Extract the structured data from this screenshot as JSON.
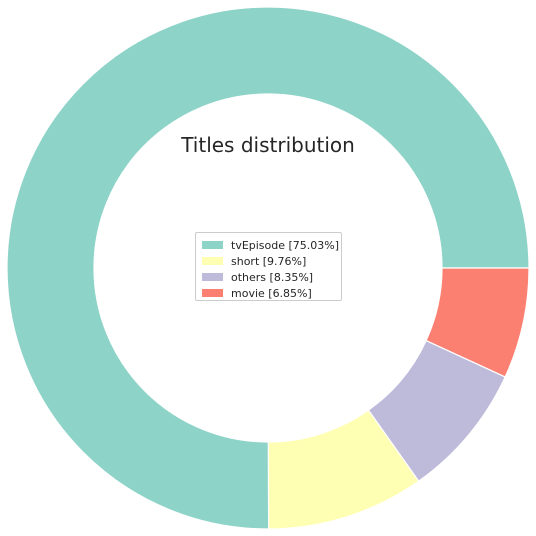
{
  "chart_data": {
    "type": "pie",
    "title": "Titles distribution",
    "donut": true,
    "legend_position": "center",
    "slices": [
      {
        "label": "tvEpisode",
        "legend_label": "tvEpisode [75.03%]",
        "value": 75.03,
        "color": "#8dd3c7"
      },
      {
        "label": "short",
        "legend_label": "short [9.76%]",
        "value": 9.76,
        "color": "#ffffb3"
      },
      {
        "label": "others",
        "legend_label": "others [8.35%]",
        "value": 8.35,
        "color": "#bebada"
      },
      {
        "label": "movie",
        "legend_label": "movie [6.85%]",
        "value": 6.85,
        "color": "#fb8072"
      }
    ]
  }
}
